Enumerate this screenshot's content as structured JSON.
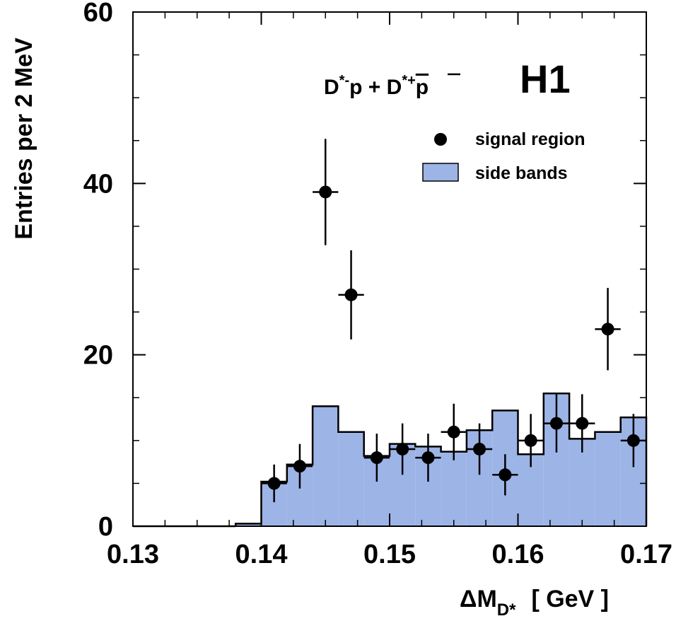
{
  "chart_data": {
    "type": "histogram",
    "xlabel": {
      "main": "ΔM",
      "sub": "D*",
      "unit": "[ GeV ]"
    },
    "ylabel": "Entries per 2 MeV",
    "xlim": [
      0.13,
      0.17
    ],
    "ylim": [
      0,
      60
    ],
    "x_ticks": [
      "0.13",
      "0.14",
      "0.15",
      "0.16",
      "0.17"
    ],
    "y_ticks": [
      "0",
      "20",
      "40",
      "60"
    ],
    "x_tick_values": [
      0.13,
      0.14,
      0.15,
      0.16,
      0.17
    ],
    "y_tick_values": [
      0,
      20,
      40,
      60
    ],
    "x_minor_step": 0.0025,
    "y_minor_step": 5,
    "bin_width": 0.002,
    "annotations": {
      "process": {
        "a": "D",
        "a_sup": "*-",
        "b": "p + D",
        "b_sup": "*+",
        "c": "p"
      },
      "experiment": "H1"
    },
    "legend": {
      "placement": "top-right",
      "entries": [
        {
          "label": "signal region",
          "marker": "dot"
        },
        {
          "label": "side bands",
          "marker": "filled-box"
        }
      ]
    },
    "colors": {
      "side_bands_fill": "#9db4e6",
      "line": "#000000"
    },
    "series": [
      {
        "name": "side bands",
        "kind": "histogram",
        "bin_centers": [
          0.139,
          0.141,
          0.143,
          0.145,
          0.147,
          0.149,
          0.151,
          0.153,
          0.155,
          0.157,
          0.159,
          0.161,
          0.163,
          0.165,
          0.167,
          0.169
        ],
        "values": [
          0.3,
          5.2,
          7.2,
          14.0,
          11.0,
          8.2,
          9.6,
          9.3,
          8.7,
          11.2,
          13.5,
          8.4,
          15.5,
          10.2,
          11.0,
          12.7
        ]
      },
      {
        "name": "signal region",
        "kind": "points",
        "x": [
          0.141,
          0.143,
          0.145,
          0.147,
          0.149,
          0.151,
          0.153,
          0.155,
          0.157,
          0.159,
          0.161,
          0.163,
          0.165,
          0.167,
          0.169
        ],
        "y": [
          5,
          7,
          39,
          27,
          8,
          9,
          8,
          11,
          9,
          6,
          10,
          12,
          12,
          23,
          10
        ],
        "err_low": [
          2.2,
          2.6,
          6.2,
          5.2,
          2.8,
          3.0,
          2.8,
          3.3,
          3.0,
          2.4,
          3.1,
          3.4,
          3.4,
          4.8,
          3.1
        ],
        "err_high": [
          2.2,
          2.6,
          6.2,
          5.2,
          2.8,
          3.0,
          2.8,
          3.3,
          3.0,
          2.4,
          3.1,
          3.4,
          3.4,
          4.8,
          3.1
        ]
      }
    ]
  }
}
